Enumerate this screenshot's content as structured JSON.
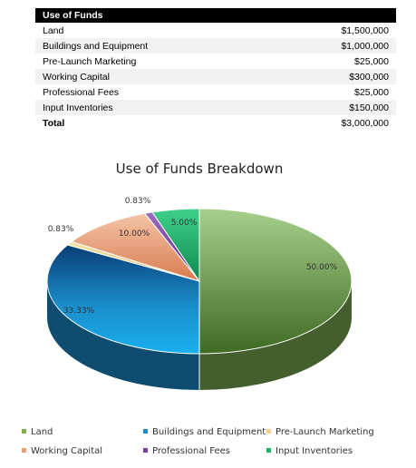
{
  "table": {
    "header": "Use of Funds",
    "rows": [
      {
        "label": "Land",
        "amount": "$1,500,000"
      },
      {
        "label": "Buildings and Equipment",
        "amount": "$1,000,000"
      },
      {
        "label": "Pre-Launch Marketing",
        "amount": "$25,000"
      },
      {
        "label": "Working Capital",
        "amount": "$300,000"
      },
      {
        "label": "Professional Fees",
        "amount": "$25,000"
      },
      {
        "label": "Input Inventories",
        "amount": "$150,000"
      }
    ],
    "total": {
      "label": "Total",
      "amount": "$3,000,000"
    }
  },
  "chart_data": {
    "type": "pie",
    "title": "Use of Funds Breakdown",
    "categories": [
      "Land",
      "Buildings and Equipment",
      "Pre-Launch Marketing",
      "Working Capital",
      "Professional Fees",
      "Input Inventories"
    ],
    "values": [
      50.0,
      33.33,
      0.83,
      10.0,
      0.83,
      5.0
    ],
    "labels": [
      "50.00%",
      "33.33%",
      "0.83%",
      "10.00%",
      "0.83%",
      "5.00%"
    ],
    "colors": [
      "#7cab52",
      "#1a8cc9",
      "#f3d58a",
      "#e8a07c",
      "#7a3fa0",
      "#19b36b"
    ],
    "legend_position": "bottom",
    "style": "3d"
  }
}
